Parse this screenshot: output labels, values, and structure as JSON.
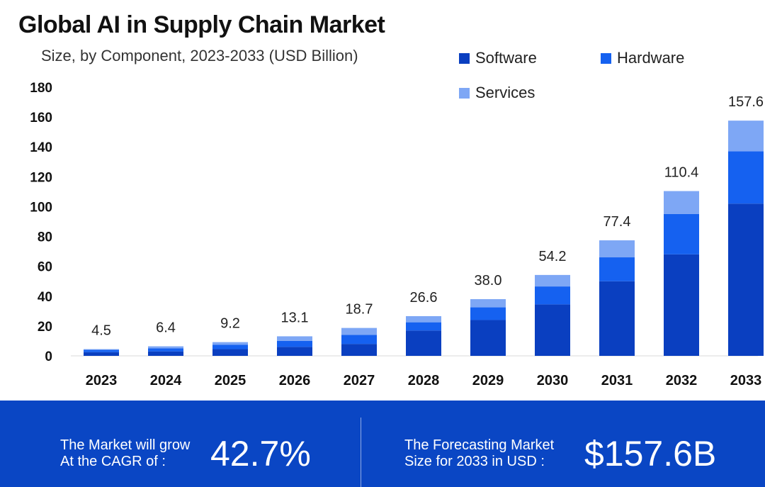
{
  "title": "Global AI in Supply Chain Market",
  "subtitle": "Size, by Component, 2023-2033 (USD Billion)",
  "colors": {
    "software": "#0a3fc0",
    "hardware": "#1561f0",
    "services": "#7ea7f5",
    "footer_bg": "#0a46c4"
  },
  "legend": [
    {
      "label": "Software"
    },
    {
      "label": "Hardware"
    },
    {
      "label": "Services"
    }
  ],
  "chart_data": {
    "type": "bar",
    "stacked": true,
    "title": "Global AI in Supply Chain Market",
    "subtitle": "Size, by Component, 2023-2033 (USD Billion)",
    "xlabel": "",
    "ylabel": "",
    "ylim": [
      0,
      180
    ],
    "yticks": [
      0,
      20,
      40,
      60,
      80,
      100,
      120,
      140,
      160,
      180
    ],
    "categories": [
      "2023",
      "2024",
      "2025",
      "2026",
      "2027",
      "2028",
      "2029",
      "2030",
      "2031",
      "2032",
      "2033"
    ],
    "series": [
      {
        "name": "Software",
        "values": [
          2.5,
          3.0,
          4.5,
          6.0,
          8.0,
          17.0,
          24.0,
          34.5,
          50.0,
          68.0,
          102.0
        ]
      },
      {
        "name": "Hardware",
        "values": [
          1.5,
          2.0,
          3.0,
          4.0,
          6.0,
          5.5,
          8.5,
          12.0,
          16.0,
          27.0,
          35.0
        ]
      },
      {
        "name": "Services",
        "values": [
          0.5,
          1.4,
          1.7,
          3.1,
          4.7,
          4.1,
          5.5,
          7.7,
          11.4,
          15.4,
          20.6
        ]
      }
    ],
    "totals": [
      "4.5",
      "6.4",
      "9.2",
      "13.1",
      "18.7",
      "26.6",
      "38.0",
      "54.2",
      "77.4",
      "110.4",
      "157.6"
    ],
    "legend_position": "top-right",
    "grid": false
  },
  "footer": {
    "cagr_text_line1": "The Market will grow",
    "cagr_text_line2": "At the CAGR of :",
    "cagr_value": "42.7%",
    "forecast_text_line1": "The Forecasting Market",
    "forecast_text_line2": "Size for 2033 in USD :",
    "forecast_value": "$157.6B"
  }
}
